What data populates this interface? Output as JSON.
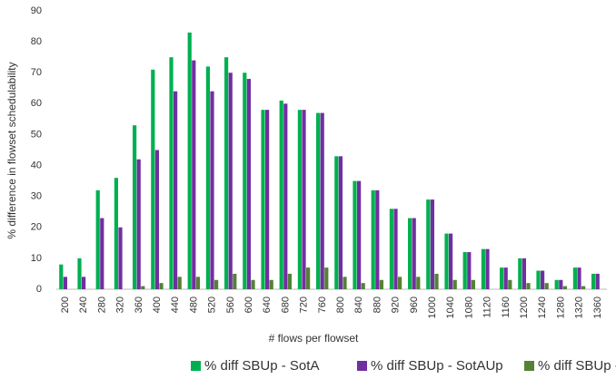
{
  "chart_data": {
    "type": "bar",
    "x_label": "# flows per flowset",
    "y_label": "% difference in flowset schedulability",
    "categories": [
      "200",
      "240",
      "280",
      "320",
      "360",
      "400",
      "440",
      "480",
      "520",
      "560",
      "600",
      "640",
      "680",
      "720",
      "760",
      "800",
      "840",
      "880",
      "920",
      "960",
      "1000",
      "1040",
      "1080",
      "1120",
      "1160",
      "1200",
      "1240",
      "1280",
      "1320",
      "1360"
    ],
    "series": [
      {
        "name": "% diff SBUp - SotA",
        "color": "#00b050",
        "values": [
          8,
          10,
          32,
          36,
          53,
          71,
          75,
          83,
          72,
          75,
          70,
          58,
          61,
          58,
          57,
          43,
          35,
          32,
          26,
          23,
          29,
          18,
          12,
          13,
          7,
          10,
          6,
          3,
          7,
          5
        ]
      },
      {
        "name": "% diff SBUp - SotAUp",
        "color": "#7030a0",
        "values": [
          4,
          4,
          23,
          20,
          42,
          45,
          64,
          74,
          64,
          70,
          68,
          58,
          60,
          58,
          57,
          43,
          35,
          32,
          26,
          23,
          29,
          18,
          12,
          13,
          7,
          10,
          6,
          3,
          7,
          5
        ]
      },
      {
        "name": "% diff SBUp - SB",
        "color": "#548235",
        "values": [
          0,
          0,
          0,
          0,
          1,
          2,
          4,
          4,
          3,
          5,
          3,
          3,
          5,
          7,
          7,
          4,
          2,
          3,
          4,
          4,
          5,
          3,
          3,
          0,
          3,
          2,
          2,
          1,
          1,
          0
        ]
      }
    ],
    "ylim": [
      0,
      90
    ],
    "yticks": [
      0,
      10,
      20,
      30,
      40,
      50,
      60,
      70,
      80,
      90
    ],
    "grid": false,
    "legend": "bottom"
  }
}
